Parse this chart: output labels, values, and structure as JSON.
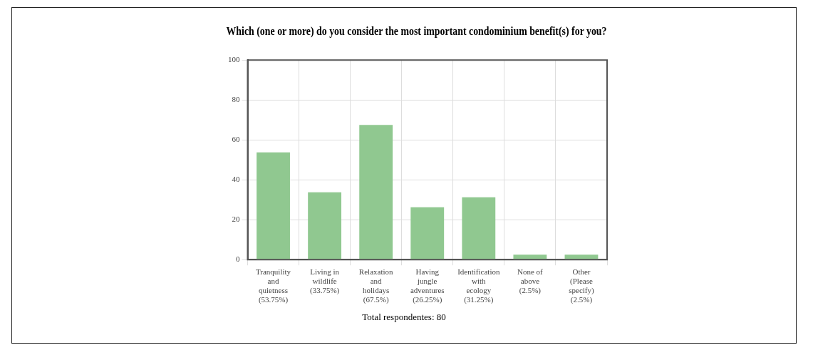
{
  "chart_data": {
    "type": "bar",
    "title": "Which (one or more) do you consider the most important condominium benefit(s) for you?",
    "categories": [
      "Tranquility and quietness (53.75%)",
      "Living in wildlife (33.75%)",
      "Relaxation and holidays (67.5%)",
      "Having jungle adventures (26.25%)",
      "Identification with ecology (31.25%)",
      "None of above (2.5%)",
      "Other (Please specify) (2.5%)"
    ],
    "values": [
      53.75,
      33.75,
      67.5,
      26.25,
      31.25,
      2.5,
      2.5
    ],
    "color": "#90c890",
    "ylim": [
      0,
      100
    ],
    "yticks": [
      0,
      20,
      40,
      60,
      80,
      100
    ],
    "grid": true,
    "legend": false,
    "annotations": [
      "Total respondentes: 80"
    ]
  }
}
